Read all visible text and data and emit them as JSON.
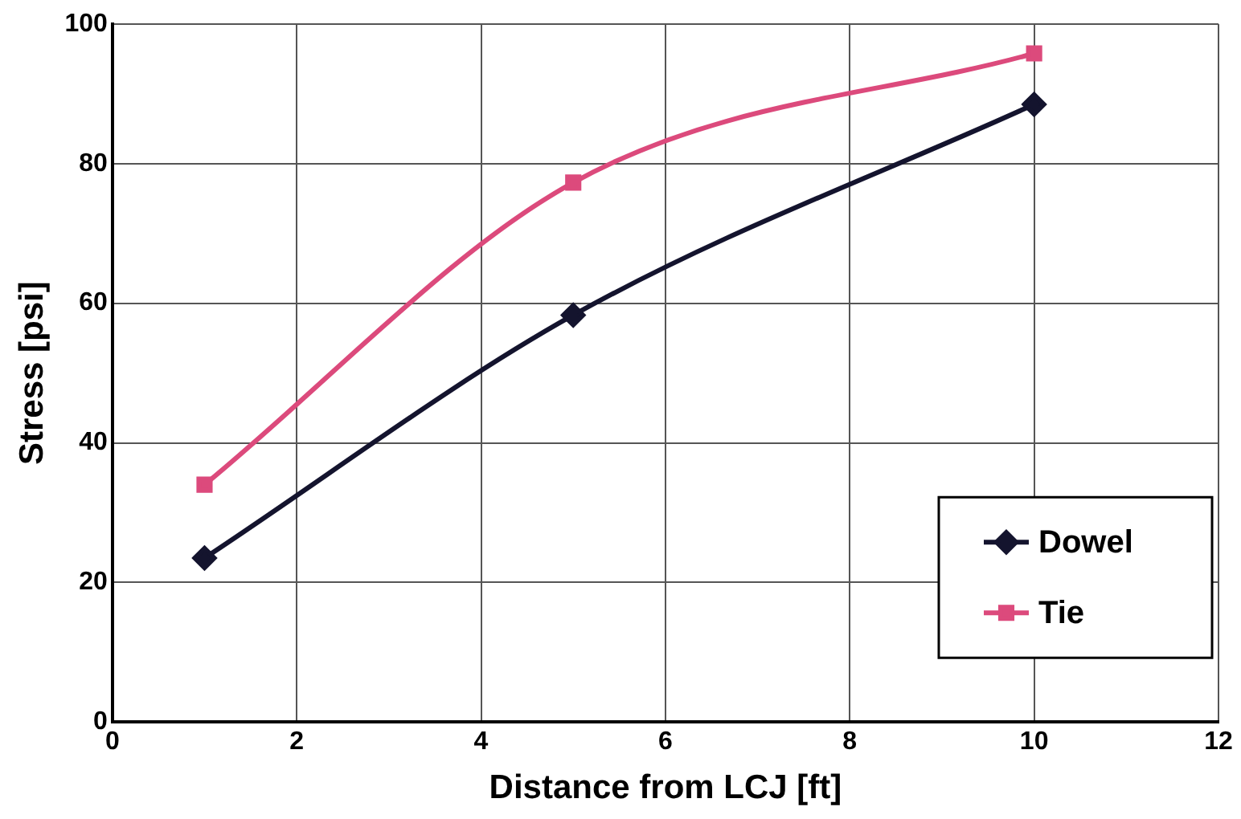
{
  "chart_data": {
    "type": "line",
    "xlabel": "Distance from LCJ [ft]",
    "ylabel": "Stress [psi]",
    "xlim": [
      0,
      12
    ],
    "xticks": [
      0,
      2,
      4,
      6,
      8,
      10,
      12
    ],
    "ylim": [
      0,
      100
    ],
    "yticks": [
      0,
      20,
      40,
      60,
      80,
      100
    ],
    "grid": true,
    "legend": "bottom right",
    "series": [
      {
        "name": "Dowel",
        "color": "#14142e",
        "marker": "diamond",
        "x": [
          1,
          5,
          10
        ],
        "values": [
          23.5,
          58.3,
          88.5
        ]
      },
      {
        "name": "Tie",
        "color": "#dc4a7c",
        "marker": "square",
        "x": [
          1,
          5,
          10
        ],
        "values": [
          34,
          77.3,
          95.8
        ]
      }
    ]
  }
}
